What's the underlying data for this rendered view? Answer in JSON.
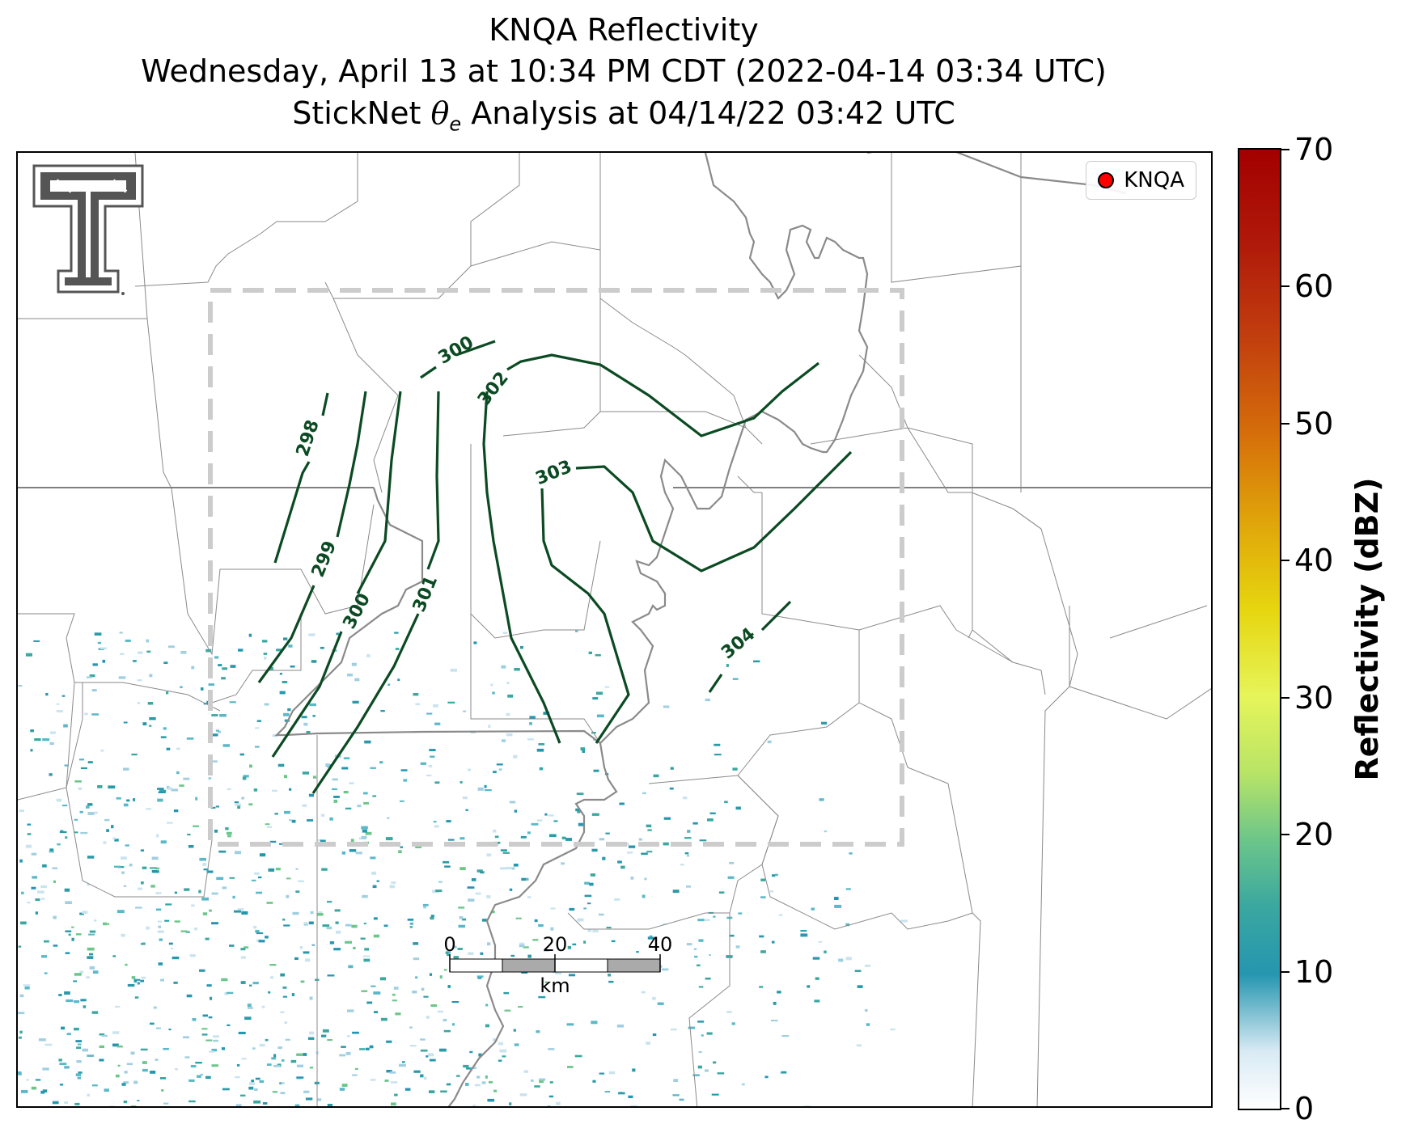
{
  "title": {
    "line1": "KNQA Reflectivity",
    "line2": "Wednesday, April 13 at 10:34 PM CDT (2022-04-14 03:34 UTC)",
    "line3_prefix": "StickNet ",
    "line3_symbol": "θ",
    "line3_subscript": "e",
    "line3_suffix": " Analysis at 04/14/22 03:42 UTC"
  },
  "legend": {
    "label": "KNQA",
    "marker_color": "#ff0000"
  },
  "colorbar": {
    "label": "Reflectivity (dBZ)",
    "ticks": [
      "0",
      "10",
      "20",
      "30",
      "40",
      "50",
      "60",
      "70"
    ],
    "range": [
      0,
      70
    ]
  },
  "scale_bar": {
    "ticks": [
      "0",
      "20",
      "40"
    ],
    "unit": "km"
  },
  "contours": {
    "color": "#0b4a22",
    "labels": [
      "298",
      "299",
      "300",
      "300",
      "301",
      "302",
      "303",
      "304"
    ]
  },
  "colors": {
    "county_lines": "#8a8a8a",
    "river": "#808080",
    "study_box": "#cccccc",
    "reflectivity_low": "#2596b0"
  },
  "logo": "texas-tech-double-t-logo"
}
